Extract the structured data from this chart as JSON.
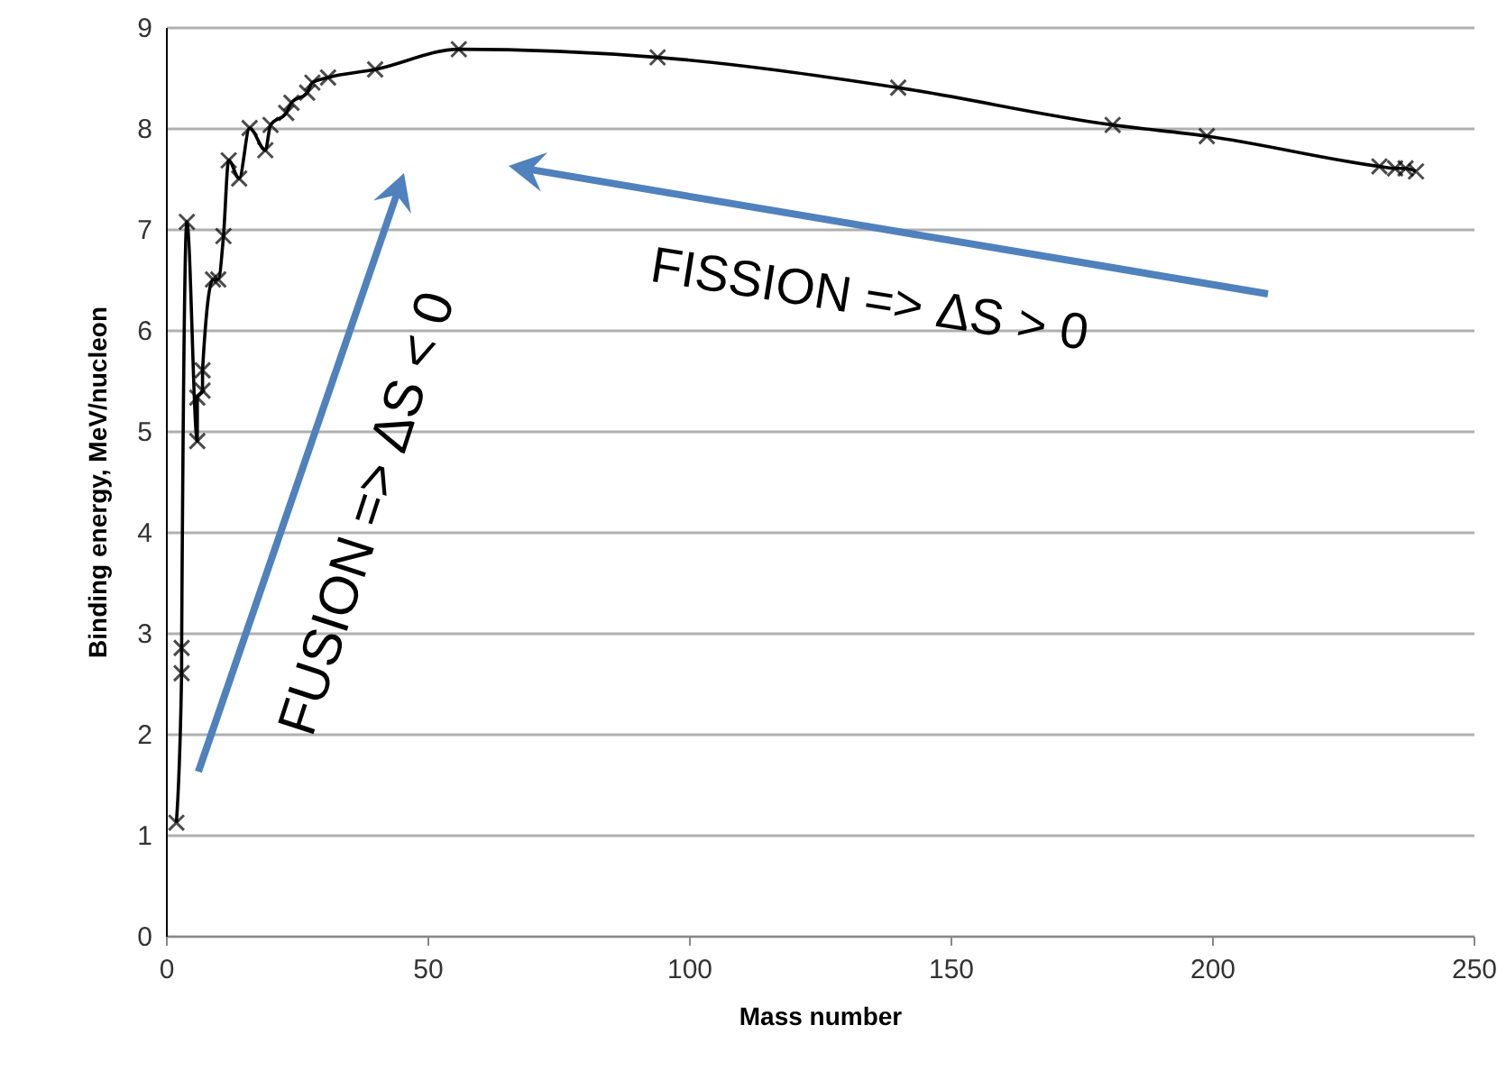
{
  "chart_data": {
    "type": "line",
    "xlabel": "Mass number",
    "ylabel": "Binding energy, MeV/nucleon",
    "x": [
      2,
      3,
      3,
      4,
      6,
      6,
      7,
      7,
      9,
      10,
      11,
      12,
      14,
      16,
      19,
      20,
      23,
      24,
      27,
      28,
      31,
      40,
      56,
      94,
      140,
      181,
      199,
      232,
      235,
      237,
      239
    ],
    "series": [
      {
        "color": "#000000",
        "values": [
          1.12,
          2.6,
          2.85,
          7.07,
          4.9,
          5.33,
          5.4,
          5.6,
          6.5,
          6.5,
          6.93,
          7.68,
          7.5,
          8.0,
          7.78,
          8.03,
          8.15,
          8.25,
          8.35,
          8.45,
          8.5,
          8.58,
          8.78,
          8.7,
          8.4,
          8.03,
          7.92,
          7.62,
          7.6,
          7.6,
          7.57
        ]
      }
    ],
    "xlim": [
      0,
      250
    ],
    "xticks": [
      0,
      50,
      100,
      150,
      200,
      250
    ],
    "ylim": [
      0,
      9
    ],
    "yticks": [
      0,
      1,
      2,
      3,
      4,
      5,
      6,
      7,
      8,
      9
    ],
    "grid": "y",
    "marker": "cross",
    "line_style": "solid",
    "annotations": [
      "FUSION => ΔS < 0",
      "FISSION => ΔS > 0"
    ]
  }
}
